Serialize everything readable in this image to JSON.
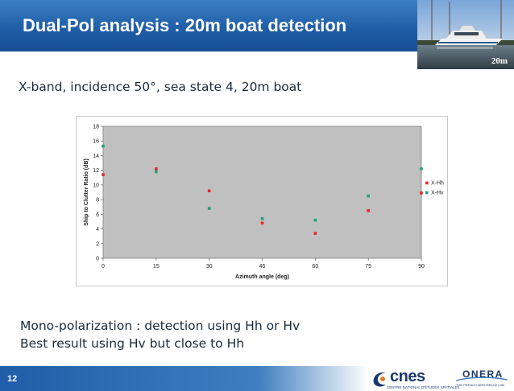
{
  "slide": {
    "title": "Dual-Pol analysis : 20m boat detection",
    "photo_caption": "20m",
    "subtitle": "X-band, incidence 50°, sea state 4, 20m boat",
    "bullets": [
      "Mono-polarization : detection using Hh or Hv",
      "Best result using Hv but close to Hh"
    ],
    "page_number": "12",
    "logos": {
      "cnes_word": "cnes",
      "cnes_tagline": "CENTRE NATIONAL D'ÉTUDES SPATIALES",
      "onera_word": "ONERA",
      "onera_tagline": "THE FRENCH AEROSPACE LAB"
    }
  },
  "chart_data": {
    "type": "scatter",
    "xlabel": "Azimuth angle (deg)",
    "ylabel": "Ship to Clutter Ratio (dB)",
    "xlim": [
      0,
      90
    ],
    "ylim": [
      0,
      18
    ],
    "xticks": [
      0,
      15,
      30,
      45,
      60,
      75,
      90
    ],
    "yticks": [
      0,
      2,
      4,
      6,
      8,
      10,
      12,
      14,
      16,
      18
    ],
    "legend_position": "right",
    "plot_background": "#c0c0c0",
    "series": [
      {
        "name": "X-Hh",
        "color": "#e8262b",
        "points": [
          [
            0,
            11.4
          ],
          [
            15,
            12.2
          ],
          [
            30,
            9.2
          ],
          [
            45,
            4.8
          ],
          [
            60,
            3.4
          ],
          [
            75,
            6.5
          ],
          [
            90,
            8.9
          ]
        ]
      },
      {
        "name": "X-Hv",
        "color": "#1fa37a",
        "points": [
          [
            0,
            15.3
          ],
          [
            15,
            11.8
          ],
          [
            30,
            6.8
          ],
          [
            45,
            5.4
          ],
          [
            60,
            5.2
          ],
          [
            75,
            8.5
          ],
          [
            90,
            12.2
          ]
        ]
      }
    ]
  }
}
